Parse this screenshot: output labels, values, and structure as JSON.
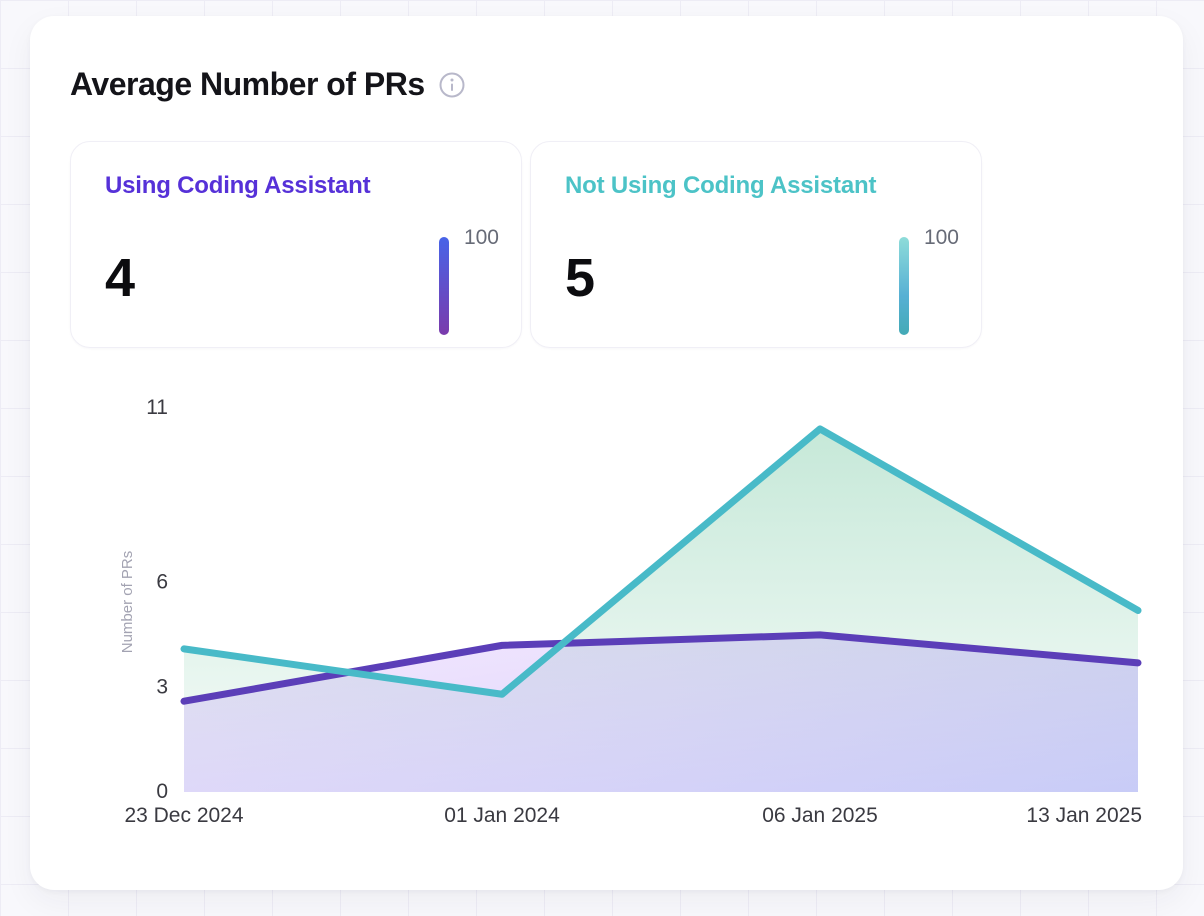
{
  "header": {
    "title": "Average Number of PRs"
  },
  "stats": [
    {
      "label": "Using Coding Assistant",
      "value": "4",
      "gauge_max": "100"
    },
    {
      "label": "Not Using Coding Assistant",
      "value": "5",
      "gauge_max": "100"
    }
  ],
  "colors": {
    "using_accent": "#5631d8",
    "using_bar_top": "#4864e8",
    "using_bar_bottom": "#7a3bac",
    "not_using_accent": "#4cc3c7",
    "not_using_bar_top": "#8edcd9",
    "not_using_bar_mid": "#57b0d4",
    "not_using_bar_bottom": "#43aab6",
    "purple_line": "#5b3eb8",
    "teal_line": "#48bac8",
    "purple_fill_start": "rgba(168,85,247,0.13)",
    "purple_fill_end": "rgba(99,102,241,0.32)",
    "teal_fill_start": "rgba(77,184,134,0.32)",
    "teal_fill_end": "rgba(77,184,134,0.04)",
    "tick_text": "#3a3a41",
    "axis_title_text": "#a3a3b2",
    "info_icon": "#b8b8ca"
  },
  "chart_data": {
    "type": "area",
    "categories": [
      "23 Dec 2024",
      "01 Jan 2024",
      "06 Jan 2025",
      "13 Jan 2025"
    ],
    "series": [
      {
        "name": "Using Coding Assistant",
        "color": "#5b3eb8",
        "values": [
          2.6,
          4.2,
          4.5,
          3.7
        ]
      },
      {
        "name": "Not Using Coding Assistant",
        "color": "#48bac8",
        "values": [
          4.1,
          2.8,
          10.4,
          5.2
        ]
      }
    ],
    "title": "Average Number of PRs",
    "xlabel": "",
    "ylabel": "Number of PRs",
    "ylim": [
      0,
      11
    ],
    "yticks": [
      0,
      3,
      6,
      11
    ],
    "grid": false,
    "legend": "none"
  }
}
